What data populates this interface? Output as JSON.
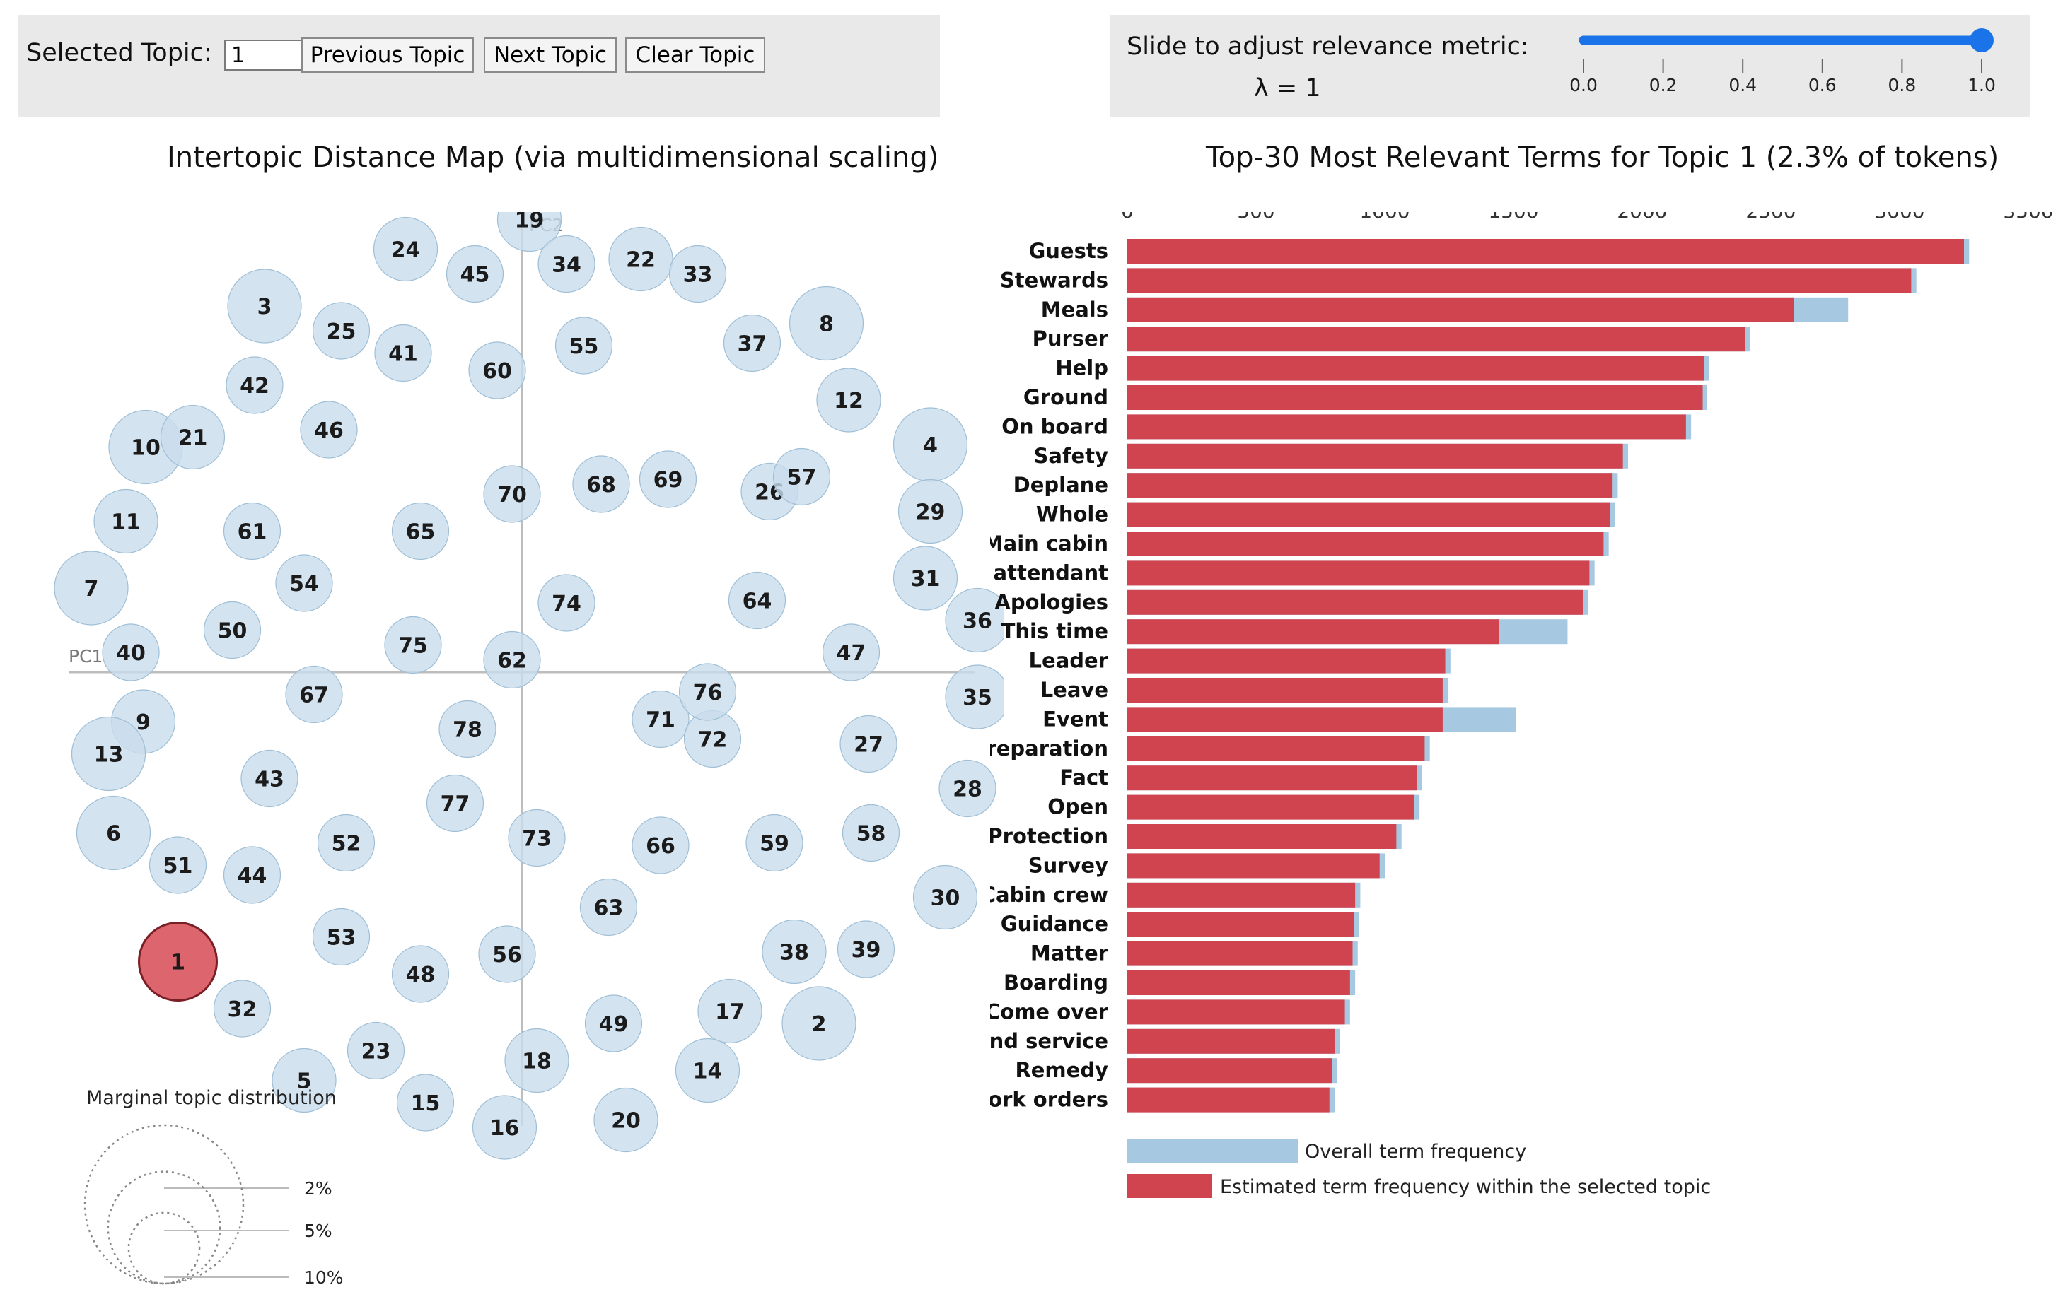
{
  "controls": {
    "selected_topic_label": "Selected Topic:",
    "selected_topic_value": "1",
    "previous_label": "Previous Topic",
    "next_label": "Next Topic",
    "clear_label": "Clear Topic",
    "slider_label": "Slide to adjust relevance metric:",
    "lambda_label": "λ = 1",
    "slider_value": 1.0,
    "slider_ticks": [
      "0.0",
      "0.2",
      "0.4",
      "0.6",
      "0.8",
      "1.0"
    ]
  },
  "colors": {
    "panel": "#e9e9e9",
    "bubble": "#c9dcec",
    "selected_bubble": "#d9545e",
    "overall_bar": "#a6c8e0",
    "estimated_bar": "#cf444f",
    "slider": "#1a73e8"
  },
  "chart_data": [
    {
      "type": "scatter",
      "title": "Intertopic Distance Map (via multidimensional scaling)",
      "xlabel": "PC1",
      "ylabel": "PC2",
      "selected_topic": 1,
      "note": "Topic positions are estimated from the figure in arbitrary PC units (x right, y up).",
      "topics": [
        {
          "id": 1,
          "x": -1.39,
          "y": -1.17
        },
        {
          "id": 2,
          "x": 1.2,
          "y": -1.42
        },
        {
          "id": 3,
          "x": -1.04,
          "y": 1.48
        },
        {
          "id": 4,
          "x": 1.65,
          "y": 0.92
        },
        {
          "id": 5,
          "x": -0.88,
          "y": -1.65
        },
        {
          "id": 6,
          "x": -1.65,
          "y": -0.65
        },
        {
          "id": 7,
          "x": -1.74,
          "y": 0.34
        },
        {
          "id": 8,
          "x": 1.23,
          "y": 1.41
        },
        {
          "id": 9,
          "x": -1.53,
          "y": -0.2
        },
        {
          "id": 10,
          "x": -1.52,
          "y": 0.91
        },
        {
          "id": 11,
          "x": -1.6,
          "y": 0.61
        },
        {
          "id": 12,
          "x": 1.32,
          "y": 1.1
        },
        {
          "id": 13,
          "x": -1.67,
          "y": -0.33
        },
        {
          "id": 14,
          "x": 0.75,
          "y": -1.61
        },
        {
          "id": 15,
          "x": -0.39,
          "y": -1.74
        },
        {
          "id": 16,
          "x": -0.07,
          "y": -1.84
        },
        {
          "id": 17,
          "x": 0.84,
          "y": -1.37
        },
        {
          "id": 18,
          "x": 0.06,
          "y": -1.57
        },
        {
          "id": 19,
          "x": 0.03,
          "y": 1.83
        },
        {
          "id": 20,
          "x": 0.42,
          "y": -1.81
        },
        {
          "id": 21,
          "x": -1.33,
          "y": 0.95
        },
        {
          "id": 22,
          "x": 0.48,
          "y": 1.67
        },
        {
          "id": 23,
          "x": -0.59,
          "y": -1.53
        },
        {
          "id": 24,
          "x": -0.47,
          "y": 1.71
        },
        {
          "id": 25,
          "x": -0.73,
          "y": 1.38
        },
        {
          "id": 26,
          "x": 1.0,
          "y": 0.73
        },
        {
          "id": 27,
          "x": 1.4,
          "y": -0.29
        },
        {
          "id": 28,
          "x": 1.8,
          "y": -0.47
        },
        {
          "id": 29,
          "x": 1.65,
          "y": 0.65
        },
        {
          "id": 30,
          "x": 1.71,
          "y": -0.91
        },
        {
          "id": 31,
          "x": 1.63,
          "y": 0.38
        },
        {
          "id": 32,
          "x": -1.13,
          "y": -1.36
        },
        {
          "id": 33,
          "x": 0.71,
          "y": 1.61
        },
        {
          "id": 34,
          "x": 0.18,
          "y": 1.65
        },
        {
          "id": 35,
          "x": 1.84,
          "y": -0.1
        },
        {
          "id": 36,
          "x": 1.84,
          "y": 0.21
        },
        {
          "id": 37,
          "x": 0.93,
          "y": 1.33
        },
        {
          "id": 38,
          "x": 1.1,
          "y": -1.13
        },
        {
          "id": 39,
          "x": 1.39,
          "y": -1.12
        },
        {
          "id": 40,
          "x": -1.58,
          "y": 0.08
        },
        {
          "id": 41,
          "x": -0.48,
          "y": 1.29
        },
        {
          "id": 42,
          "x": -1.08,
          "y": 1.16
        },
        {
          "id": 43,
          "x": -1.02,
          "y": -0.43
        },
        {
          "id": 44,
          "x": -1.09,
          "y": -0.82
        },
        {
          "id": 45,
          "x": -0.19,
          "y": 1.61
        },
        {
          "id": 46,
          "x": -0.78,
          "y": 0.98
        },
        {
          "id": 47,
          "x": 1.33,
          "y": 0.08
        },
        {
          "id": 48,
          "x": -0.41,
          "y": -1.22
        },
        {
          "id": 49,
          "x": 0.37,
          "y": -1.42
        },
        {
          "id": 50,
          "x": -1.17,
          "y": 0.17
        },
        {
          "id": 51,
          "x": -1.39,
          "y": -0.78
        },
        {
          "id": 52,
          "x": -0.71,
          "y": -0.69
        },
        {
          "id": 53,
          "x": -0.73,
          "y": -1.07
        },
        {
          "id": 54,
          "x": -0.88,
          "y": 0.36
        },
        {
          "id": 55,
          "x": 0.25,
          "y": 1.32
        },
        {
          "id": 56,
          "x": -0.06,
          "y": -1.14
        },
        {
          "id": 57,
          "x": 1.13,
          "y": 0.79
        },
        {
          "id": 58,
          "x": 1.41,
          "y": -0.65
        },
        {
          "id": 59,
          "x": 1.02,
          "y": -0.69
        },
        {
          "id": 60,
          "x": -0.1,
          "y": 1.22
        },
        {
          "id": 61,
          "x": -1.09,
          "y": 0.57
        },
        {
          "id": 62,
          "x": -0.04,
          "y": 0.05
        },
        {
          "id": 63,
          "x": 0.35,
          "y": -0.95
        },
        {
          "id": 64,
          "x": 0.95,
          "y": 0.29
        },
        {
          "id": 65,
          "x": -0.41,
          "y": 0.57
        },
        {
          "id": 66,
          "x": 0.56,
          "y": -0.7
        },
        {
          "id": 67,
          "x": -0.84,
          "y": -0.09
        },
        {
          "id": 68,
          "x": 0.32,
          "y": 0.76
        },
        {
          "id": 69,
          "x": 0.59,
          "y": 0.78
        },
        {
          "id": 70,
          "x": -0.04,
          "y": 0.72
        },
        {
          "id": 71,
          "x": 0.56,
          "y": -0.19
        },
        {
          "id": 72,
          "x": 0.77,
          "y": -0.27
        },
        {
          "id": 73,
          "x": 0.06,
          "y": -0.67
        },
        {
          "id": 74,
          "x": 0.18,
          "y": 0.28
        },
        {
          "id": 75,
          "x": -0.44,
          "y": 0.11
        },
        {
          "id": 76,
          "x": 0.75,
          "y": -0.08
        },
        {
          "id": 77,
          "x": -0.27,
          "y": -0.53
        },
        {
          "id": 78,
          "x": -0.22,
          "y": -0.23
        }
      ],
      "legend": {
        "title": "Marginal topic distribution",
        "labels": [
          "2%",
          "5%",
          "10%"
        ],
        "fractions": [
          0.02,
          0.05,
          0.1
        ]
      }
    },
    {
      "type": "bar",
      "orientation": "horizontal",
      "title": "Top-30 Most Relevant Terms for Topic 1 (2.3% of tokens)",
      "xlim": [
        0,
        3500
      ],
      "x_ticks": [
        "0",
        "500",
        "1000",
        "1500",
        "2000",
        "2500",
        "3000",
        "3500"
      ],
      "categories": [
        "Guests",
        "Stewards",
        "Meals",
        "Purser",
        "Help",
        "Ground",
        "On board",
        "Safety",
        "Deplane",
        "Whole",
        "Main cabin",
        "Flight attendant",
        "Apologies",
        "This time",
        "Leader",
        "Leave",
        "Event",
        "Preparation",
        "Fact",
        "Open",
        "Protection",
        "Survey",
        "Cabin crew",
        "Guidance",
        "Matter",
        "Boarding",
        "Come over",
        "Ground service",
        "Remedy",
        "Work orders"
      ],
      "series": [
        {
          "name": "Overall term frequency",
          "values": [
            3270,
            3065,
            2800,
            2420,
            2260,
            2250,
            2190,
            1945,
            1905,
            1895,
            1870,
            1815,
            1790,
            1710,
            1255,
            1245,
            1510,
            1175,
            1145,
            1135,
            1065,
            1000,
            905,
            900,
            895,
            885,
            865,
            825,
            815,
            805
          ]
        },
        {
          "name": "Estimated term frequency within the selected topic",
          "values": [
            3250,
            3045,
            2590,
            2400,
            2240,
            2235,
            2170,
            1925,
            1885,
            1875,
            1850,
            1795,
            1770,
            1445,
            1235,
            1225,
            1225,
            1155,
            1125,
            1115,
            1045,
            980,
            885,
            880,
            875,
            865,
            845,
            805,
            795,
            785
          ]
        }
      ],
      "legend": [
        "Overall term frequency",
        "Estimated term frequency within the selected topic"
      ]
    }
  ]
}
